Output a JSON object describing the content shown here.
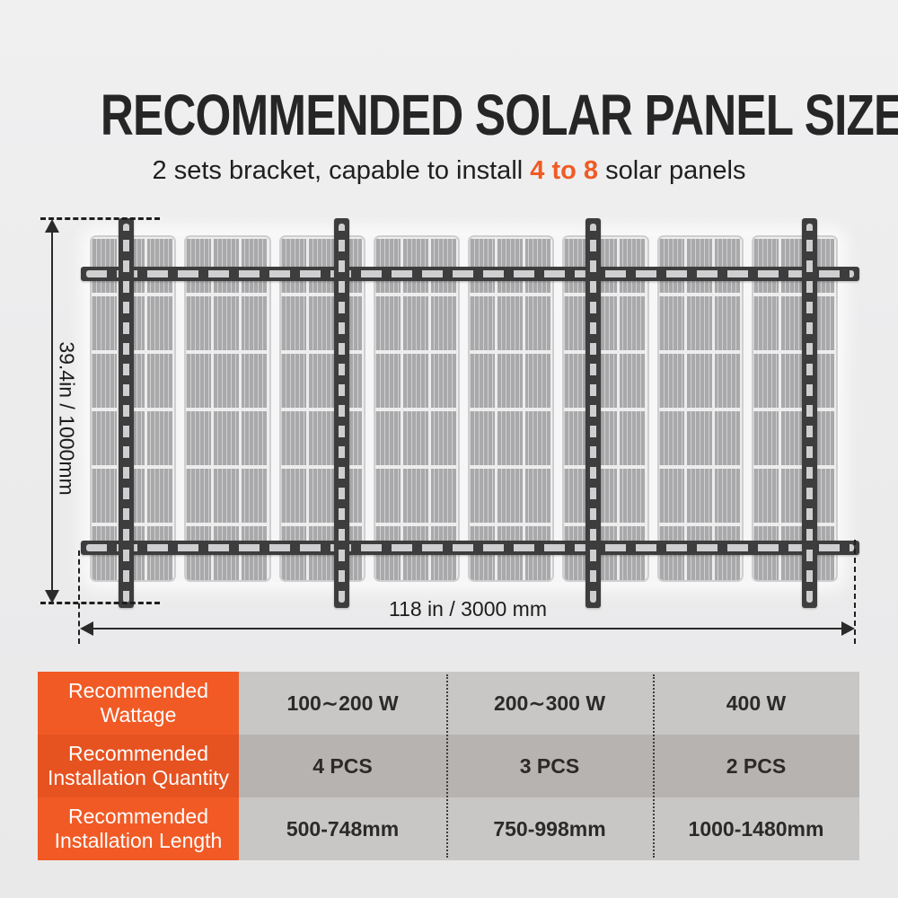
{
  "header": {
    "title": "RECOMMENDED SOLAR PANEL SIZE",
    "subtitle_prefix": "2 sets bracket, capable to install ",
    "subtitle_highlight": "4 to 8",
    "subtitle_suffix": " solar panels"
  },
  "diagram": {
    "panel_count": 8,
    "vertical_rail_count": 4,
    "horizontal_rail_count": 2,
    "height_label": "39.4in / 1000mm",
    "width_label": "118 in / 3000 mm"
  },
  "table": {
    "rows": [
      {
        "label_line1": "Recommended",
        "label_line2": "Wattage",
        "values": [
          "100∼200 W",
          "200∼300 W",
          "400 W"
        ]
      },
      {
        "label_line1": "Recommended",
        "label_line2": "Installation Quantity",
        "values": [
          "4 PCS",
          "3 PCS",
          "2 PCS"
        ]
      },
      {
        "label_line1": "Recommended",
        "label_line2": "Installation Length",
        "values": [
          "500-748mm",
          "750-998mm",
          "1000-1480mm"
        ]
      }
    ]
  },
  "colors": {
    "accent_orange": "#f15a25",
    "accent_orange_dark": "#e65220",
    "row_light_gray": "#c8c7c5",
    "row_dark_gray": "#b7b3b1",
    "rail_dark": "#3e3d3d",
    "panel_gray": "#a9a9ab",
    "text_dark": "#262626"
  }
}
